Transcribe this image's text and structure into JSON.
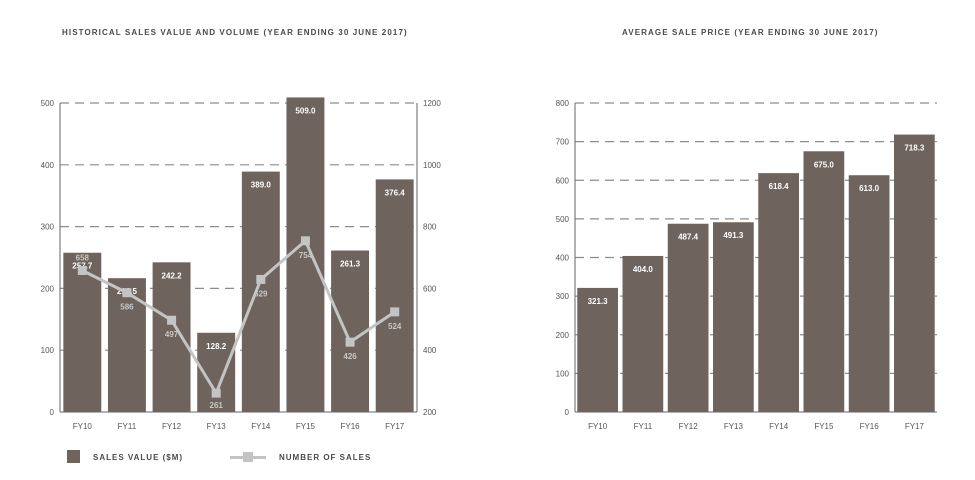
{
  "colors": {
    "bar": "#6e635d",
    "line": "#c4c4c4",
    "grid": "#8c8c8c",
    "axis": "#666666"
  },
  "chart_data": [
    {
      "type": "bar",
      "title": "HISTORICAL SALES VALUE AND VOLUME (YEAR ENDING 30 JUNE 2017)",
      "categories": [
        "FY10",
        "FY11",
        "FY12",
        "FY13",
        "FY14",
        "FY15",
        "FY16",
        "FY17"
      ],
      "series": [
        {
          "name": "SALES VALUE ($M)",
          "type": "bar",
          "axis": "left",
          "values": [
            257.7,
            216.5,
            242.2,
            128.2,
            389.0,
            509.0,
            261.3,
            376.4
          ],
          "labels": [
            "257.7",
            "216.5",
            "242.2",
            "128.2",
            "389.0",
            "509.0",
            "261.3",
            "376.4"
          ]
        },
        {
          "name": "NUMBER OF SALES",
          "type": "line",
          "axis": "right",
          "values": [
            658,
            586,
            497,
            261,
            629,
            754,
            426,
            524
          ],
          "labels": [
            "658",
            "586",
            "497",
            "261",
            "629",
            "754",
            "426",
            "524"
          ]
        }
      ],
      "ylim": [
        0,
        500
      ],
      "yticks": [
        "0",
        "100",
        "200",
        "300",
        "400",
        "500"
      ],
      "y2lim": [
        200,
        1200
      ],
      "y2ticks": [
        "200",
        "400",
        "600",
        "800",
        "1000",
        "1200"
      ],
      "grid": true,
      "legend_position": "bottom-left"
    },
    {
      "type": "bar",
      "title": "AVERAGE SALE PRICE (YEAR ENDING 30 JUNE 2017)",
      "categories": [
        "FY10",
        "FY11",
        "FY12",
        "FY13",
        "FY14",
        "FY15",
        "FY16",
        "FY17"
      ],
      "values": [
        321.3,
        404.0,
        487.4,
        491.3,
        618.4,
        675.0,
        613.0,
        718.3
      ],
      "labels": [
        "321.3",
        "404.0",
        "487.4",
        "491.3",
        "618.4",
        "675.0",
        "613.0",
        "718.3"
      ],
      "ylim": [
        0,
        800
      ],
      "yticks": [
        "0",
        "100",
        "200",
        "300",
        "400",
        "500",
        "600",
        "700",
        "800"
      ],
      "grid": true
    }
  ]
}
